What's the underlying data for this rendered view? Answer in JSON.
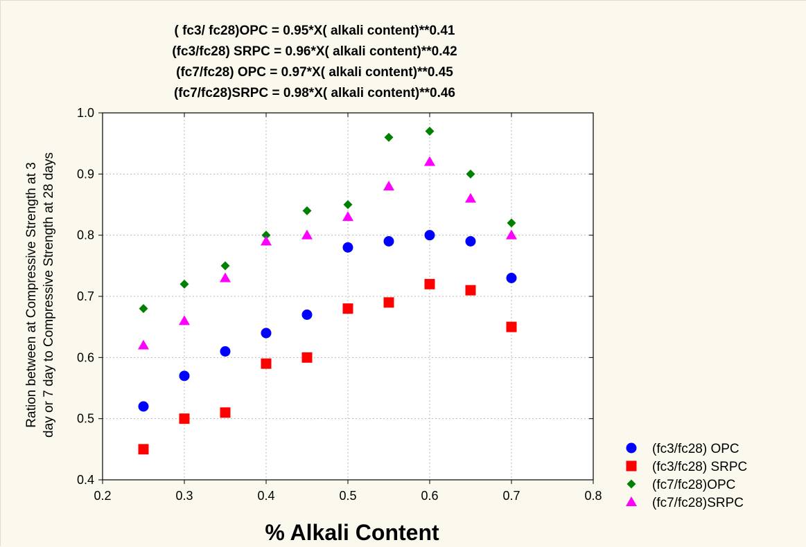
{
  "colors": {
    "background": "#fbf9ee",
    "opc3": "#0000ff",
    "srpc3": "#ff0000",
    "opc7": "#008000",
    "srpc7": "#ff00ff"
  },
  "chart_data": {
    "type": "scatter",
    "title_lines": [
      "( fc3/ fc28)OPC = 0.95*X( alkali content)**0.41",
      "(fc3/fc28) SRPC = 0.96*X( alkali content)**0.42",
      "(fc7/fc28) OPC = 0.97*X( alkali content)**0.45",
      "(fc7/fc28)SRPC = 0.98*X( alkali content)**0.46"
    ],
    "xlabel": "% Alkali Content",
    "ylabel_lines": [
      "Ration between at Compressive Strength at 3",
      "day or 7 day to Compressive Strength at 28 days"
    ],
    "xlim": [
      0.2,
      0.8
    ],
    "ylim": [
      0.4,
      1.0
    ],
    "xticks": [
      "0.2",
      "0.3",
      "0.4",
      "0.5",
      "0.6",
      "0.7",
      "0.8"
    ],
    "yticks": [
      "0.4",
      "0.5",
      "0.6",
      "0.7",
      "0.8",
      "0.9",
      "1.0"
    ],
    "grid": true,
    "legend_position": "right",
    "x": [
      0.25,
      0.3,
      0.35,
      0.4,
      0.45,
      0.5,
      0.55,
      0.6,
      0.65,
      0.7
    ],
    "series": [
      {
        "name": "(fc3/fc28) OPC",
        "marker": "circle",
        "color": "#0000ff",
        "values": [
          0.52,
          0.57,
          0.61,
          0.64,
          0.67,
          0.78,
          0.79,
          0.8,
          0.79,
          0.73
        ]
      },
      {
        "name": "(fc3/fc28) SRPC",
        "marker": "square",
        "color": "#ff0000",
        "values": [
          0.45,
          0.5,
          0.51,
          0.59,
          0.6,
          0.68,
          0.69,
          0.72,
          0.71,
          0.65
        ]
      },
      {
        "name": "(fc7/fc28)OPC",
        "marker": "diamond",
        "color": "#008000",
        "values": [
          0.68,
          0.72,
          0.75,
          0.8,
          0.84,
          0.85,
          0.96,
          0.97,
          0.9,
          0.82
        ]
      },
      {
        "name": "(fc7/fc28)SRPC",
        "marker": "triangle",
        "color": "#ff00ff",
        "values": [
          0.62,
          0.66,
          0.73,
          0.79,
          0.8,
          0.83,
          0.88,
          0.92,
          0.86,
          0.8
        ]
      }
    ]
  }
}
